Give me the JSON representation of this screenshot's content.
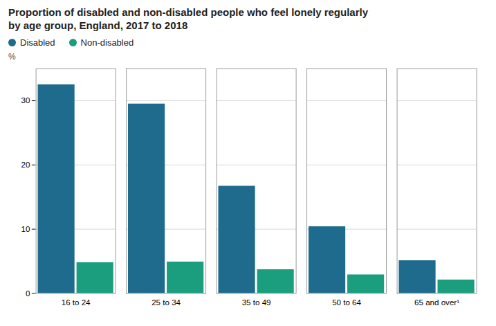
{
  "chart_data": {
    "type": "bar",
    "title": "Proportion of disabled and non-disabled people who feel lonely regularly",
    "subtitle": "by age group, England, 2017 to 2018",
    "ylabel": "%",
    "categories": [
      "16 to 24",
      "25 to 34",
      "35 to 49",
      "50 to 64",
      "65 and over¹"
    ],
    "series": [
      {
        "name": "Disabled",
        "color": "#1f6b8e",
        "values": [
          32.5,
          29.5,
          16.7,
          10.4,
          5.1
        ]
      },
      {
        "name": "Non-disabled",
        "color": "#1a9e7e",
        "values": [
          4.8,
          4.9,
          3.7,
          2.9,
          2.1
        ]
      }
    ],
    "ylim": [
      0,
      35
    ],
    "yticks": [
      0,
      10,
      20,
      30
    ],
    "grid": true,
    "legend": "upper left"
  }
}
